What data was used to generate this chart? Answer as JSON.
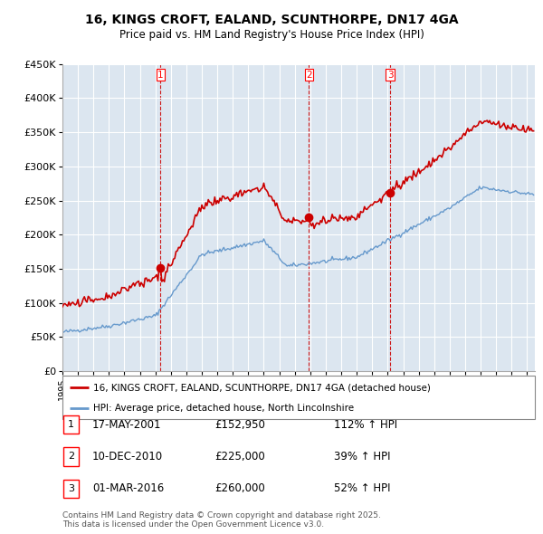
{
  "title": "16, KINGS CROFT, EALAND, SCUNTHORPE, DN17 4GA",
  "subtitle": "Price paid vs. HM Land Registry's House Price Index (HPI)",
  "legend_entry1": "16, KINGS CROFT, EALAND, SCUNTHORPE, DN17 4GA (detached house)",
  "legend_entry2": "HPI: Average price, detached house, North Lincolnshire",
  "transactions": [
    {
      "num": 1,
      "date": "17-MAY-2001",
      "price": 152950,
      "pct": "112%",
      "dir": "↑"
    },
    {
      "num": 2,
      "date": "10-DEC-2010",
      "price": 225000,
      "pct": "39%",
      "dir": "↑"
    },
    {
      "num": 3,
      "date": "01-MAR-2016",
      "price": 260000,
      "pct": "52%",
      "dir": "↑"
    }
  ],
  "footer": "Contains HM Land Registry data © Crown copyright and database right 2025.\nThis data is licensed under the Open Government Licence v3.0.",
  "property_color": "#cc0000",
  "hpi_color": "#6699cc",
  "vline_color": "#cc0000",
  "ylim": [
    0,
    450000
  ],
  "yticks": [
    0,
    50000,
    100000,
    150000,
    200000,
    250000,
    300000,
    350000,
    400000,
    450000
  ],
  "background_color": "#dce6f0"
}
